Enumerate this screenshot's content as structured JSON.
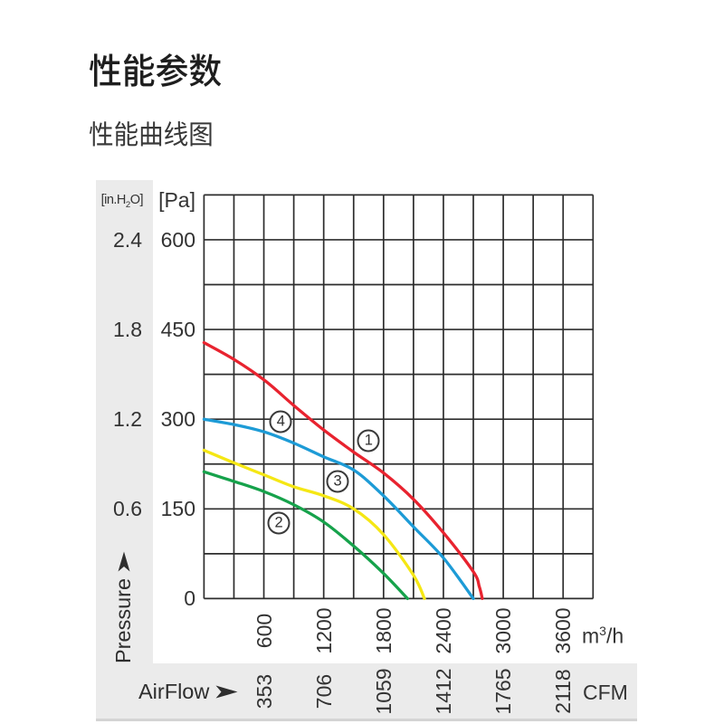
{
  "page": {
    "title": "性能参数",
    "subtitle": "性能曲线图"
  },
  "chart_data": {
    "type": "line",
    "title": "性能曲线图",
    "x_axis": {
      "name": "AirFlow",
      "unit_primary": "m³/h",
      "unit_primary_parts": {
        "pre": "m",
        "sup": "3",
        "post": "/h"
      },
      "unit_secondary": "CFM",
      "range_m3h": [
        0,
        3900
      ],
      "ticks_m3h": [
        "600",
        "1200",
        "1800",
        "2400",
        "3000",
        "3600"
      ],
      "ticks_cfm": [
        "353",
        "706",
        "1059",
        "1412",
        "1765",
        "2118"
      ]
    },
    "y_axis": {
      "name": "Pressure",
      "unit_primary": "[Pa]",
      "unit_secondary": "[in.H₂O]",
      "unit_secondary_parts": {
        "pre": "[in.H",
        "sub": "2",
        "post": "O]"
      },
      "range_pa": [
        0,
        675
      ],
      "ticks_pa": [
        "600",
        "450",
        "300",
        "150",
        "0"
      ],
      "ticks_inh2o": [
        "2.4",
        "1.8",
        "1.2",
        "0.6"
      ]
    },
    "grid": {
      "columns": 13,
      "rows": 9
    },
    "series": [
      {
        "label": "1",
        "color": "#e8232f",
        "marker_at": [
          1650,
          264
        ],
        "points": [
          [
            0,
            428
          ],
          [
            300,
            400
          ],
          [
            600,
            366
          ],
          [
            900,
            323
          ],
          [
            1200,
            282
          ],
          [
            1500,
            245
          ],
          [
            1800,
            210
          ],
          [
            2100,
            166
          ],
          [
            2400,
            110
          ],
          [
            2700,
            45
          ],
          [
            2760,
            20
          ],
          [
            2790,
            0
          ]
        ]
      },
      {
        "label": "2",
        "color": "#16a24b",
        "marker_at": [
          750,
          126
        ],
        "points": [
          [
            0,
            212
          ],
          [
            300,
            196
          ],
          [
            600,
            179
          ],
          [
            900,
            157
          ],
          [
            1200,
            128
          ],
          [
            1500,
            88
          ],
          [
            1800,
            42
          ],
          [
            2040,
            0
          ]
        ]
      },
      {
        "label": "3",
        "color": "#f5e714",
        "marker_at": [
          1340,
          196
        ],
        "points": [
          [
            0,
            248
          ],
          [
            300,
            227
          ],
          [
            600,
            207
          ],
          [
            900,
            187
          ],
          [
            1200,
            172
          ],
          [
            1500,
            150
          ],
          [
            1800,
            107
          ],
          [
            2100,
            39
          ],
          [
            2210,
            0
          ]
        ]
      },
      {
        "label": "4",
        "color": "#1d9bd6",
        "marker_at": [
          770,
          296
        ],
        "points": [
          [
            0,
            300
          ],
          [
            300,
            291
          ],
          [
            600,
            279
          ],
          [
            900,
            260
          ],
          [
            1200,
            237
          ],
          [
            1500,
            215
          ],
          [
            1800,
            172
          ],
          [
            2100,
            120
          ],
          [
            2400,
            68
          ],
          [
            2700,
            0
          ]
        ]
      }
    ]
  }
}
